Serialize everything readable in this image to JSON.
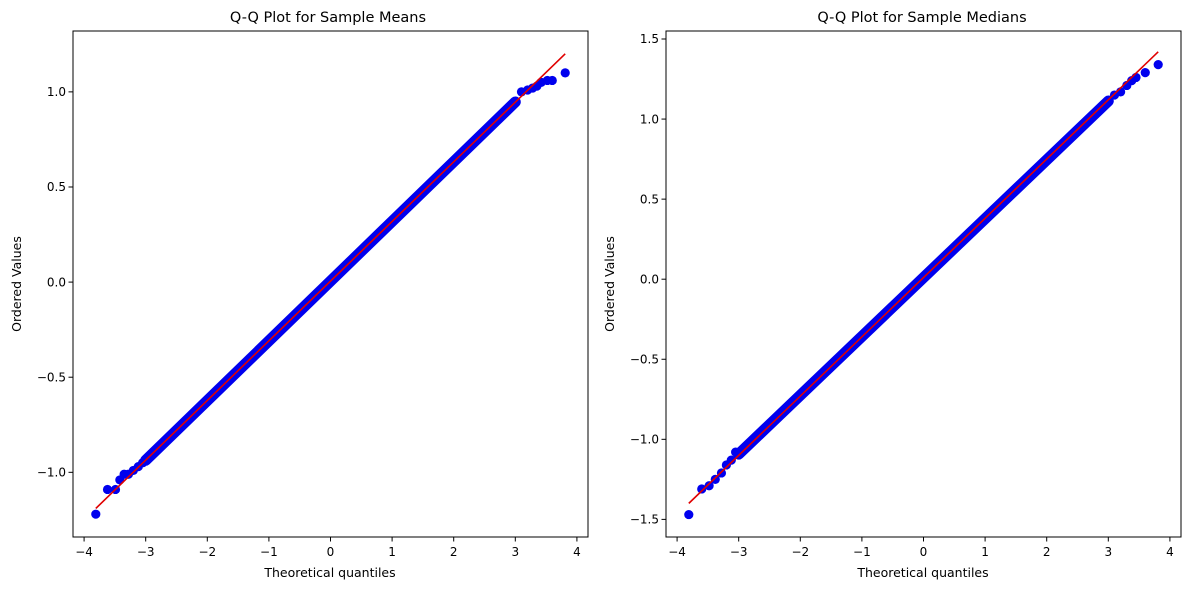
{
  "chart_data": [
    {
      "type": "scatter",
      "title": "Q-Q Plot for Sample Means",
      "xlabel": "Theoretical quantiles",
      "ylabel": "Ordered Values",
      "xlim": [
        -4.18,
        4.18
      ],
      "ylim": [
        -1.34,
        1.32
      ],
      "xticks": [
        -4,
        -3,
        -2,
        -1,
        0,
        1,
        2,
        3,
        4
      ],
      "yticks": [
        -1.0,
        -0.5,
        0.0,
        0.5,
        1.0
      ],
      "xtick_labels": [
        "−4",
        "−3",
        "−2",
        "−1",
        "0",
        "1",
        "2",
        "3",
        "4"
      ],
      "ytick_labels": [
        "−1.0",
        "−0.5",
        "0.0",
        "0.5",
        "1.0"
      ],
      "grid": false,
      "fit_line": {
        "x": [
          -3.81,
          3.81
        ],
        "y": [
          -1.19,
          1.2
        ],
        "color": "#e00000"
      },
      "point_color": "#0000ee",
      "bulk": {
        "x_range": [
          -3.0,
          3.0
        ],
        "slope": 0.314,
        "intercept": 0.005
      },
      "points": {
        "x": [
          -3.81,
          -3.62,
          -3.49,
          -3.42,
          -3.35,
          -3.28,
          -3.2,
          -3.12,
          -3.05,
          3.1,
          3.2,
          3.28,
          3.35,
          3.42,
          3.52,
          3.6,
          3.81
        ],
        "y": [
          -1.22,
          -1.09,
          -1.09,
          -1.04,
          -1.01,
          -1.01,
          -0.99,
          -0.97,
          -0.95,
          1.0,
          1.01,
          1.02,
          1.03,
          1.05,
          1.06,
          1.06,
          1.1
        ]
      }
    },
    {
      "type": "scatter",
      "title": "Q-Q Plot for Sample Medians",
      "xlabel": "Theoretical quantiles",
      "ylabel": "Ordered Values",
      "xlim": [
        -4.18,
        4.18
      ],
      "ylim": [
        -1.61,
        1.55
      ],
      "xticks": [
        -4,
        -3,
        -2,
        -1,
        0,
        1,
        2,
        3,
        4
      ],
      "yticks": [
        -1.5,
        -1.0,
        -0.5,
        0.0,
        0.5,
        1.0,
        1.5
      ],
      "xtick_labels": [
        "−4",
        "−3",
        "−2",
        "−1",
        "0",
        "1",
        "2",
        "3",
        "4"
      ],
      "ytick_labels": [
        "−1.5",
        "−1.0",
        "−0.5",
        "0.0",
        "0.5",
        "1.0",
        "1.5"
      ],
      "grid": false,
      "fit_line": {
        "x": [
          -3.81,
          3.81
        ],
        "y": [
          -1.4,
          1.42
        ],
        "color": "#e00000"
      },
      "point_color": "#0000ee",
      "bulk": {
        "x_range": [
          -3.0,
          3.0
        ],
        "slope": 0.3675,
        "intercept": 0.01
      },
      "points": {
        "x": [
          -3.81,
          -3.6,
          -3.48,
          -3.38,
          -3.28,
          -3.2,
          -3.12,
          -3.05,
          3.1,
          3.2,
          3.3,
          3.38,
          3.45,
          3.6,
          3.81
        ],
        "y": [
          -1.47,
          -1.31,
          -1.29,
          -1.25,
          -1.21,
          -1.16,
          -1.13,
          -1.08,
          1.15,
          1.17,
          1.21,
          1.24,
          1.26,
          1.29,
          1.34
        ]
      }
    }
  ]
}
